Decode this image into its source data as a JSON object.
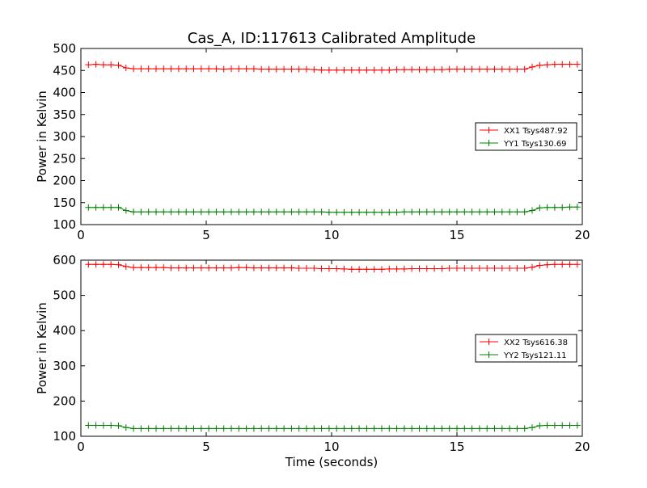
{
  "figure": {
    "title": "Cas_A, ID:117613 Calibrated Amplitude"
  },
  "chart_data": [
    {
      "type": "line",
      "title": "Cas_A, ID:117613 Calibrated Amplitude",
      "xlabel": "",
      "ylabel": "Power in Kelvin",
      "xlim": [
        0,
        20
      ],
      "ylim": [
        100,
        500
      ],
      "xticks": [
        "0",
        "5",
        "10",
        "15",
        "20"
      ],
      "yticks": [
        "100",
        "150",
        "200",
        "250",
        "300",
        "350",
        "400",
        "450",
        "500"
      ],
      "grid": false,
      "legend": "center-right",
      "series": [
        {
          "name": "XX1 Tsys487.92",
          "color": "#ff0000",
          "x": [
            0.3,
            0.6,
            0.9,
            1.2,
            1.5,
            1.8,
            2.1,
            2.4,
            2.7,
            3.0,
            3.3,
            3.6,
            3.9,
            4.2,
            4.5,
            4.8,
            5.1,
            5.4,
            5.7,
            6.0,
            6.3,
            6.6,
            6.9,
            7.2,
            7.5,
            7.8,
            8.1,
            8.4,
            8.7,
            9.0,
            9.3,
            9.6,
            9.9,
            10.2,
            10.5,
            10.8,
            11.1,
            11.4,
            11.7,
            12.0,
            12.3,
            12.6,
            12.9,
            13.2,
            13.5,
            13.8,
            14.1,
            14.4,
            14.7,
            15.0,
            15.3,
            15.6,
            15.9,
            16.2,
            16.5,
            16.8,
            17.1,
            17.4,
            17.7,
            18.0,
            18.3,
            18.6,
            18.9,
            19.2,
            19.5,
            19.8
          ],
          "y": [
            463,
            464,
            463,
            463,
            462,
            456,
            454,
            454,
            454,
            454,
            454,
            454,
            454,
            454,
            454,
            454,
            454,
            454,
            453,
            454,
            454,
            454,
            454,
            453,
            453,
            453,
            453,
            453,
            453,
            453,
            452,
            451,
            451,
            451,
            451,
            451,
            451,
            451,
            451,
            451,
            451,
            452,
            452,
            452,
            452,
            452,
            452,
            452,
            453,
            453,
            453,
            453,
            453,
            453,
            453,
            453,
            453,
            453,
            453,
            458,
            462,
            463,
            464,
            464,
            464,
            464
          ]
        },
        {
          "name": "YY1 Tsys130.69",
          "color": "#008000",
          "x": [
            0.3,
            0.6,
            0.9,
            1.2,
            1.5,
            1.8,
            2.1,
            2.4,
            2.7,
            3.0,
            3.3,
            3.6,
            3.9,
            4.2,
            4.5,
            4.8,
            5.1,
            5.4,
            5.7,
            6.0,
            6.3,
            6.6,
            6.9,
            7.2,
            7.5,
            7.8,
            8.1,
            8.4,
            8.7,
            9.0,
            9.3,
            9.6,
            9.9,
            10.2,
            10.5,
            10.8,
            11.1,
            11.4,
            11.7,
            12.0,
            12.3,
            12.6,
            12.9,
            13.2,
            13.5,
            13.8,
            14.1,
            14.4,
            14.7,
            15.0,
            15.3,
            15.6,
            15.9,
            16.2,
            16.5,
            16.8,
            17.1,
            17.4,
            17.7,
            18.0,
            18.3,
            18.6,
            18.9,
            19.2,
            19.5,
            19.8
          ],
          "y": [
            139,
            139,
            139,
            139,
            139,
            132,
            129,
            129,
            129,
            129,
            129,
            129,
            129,
            129,
            129,
            129,
            129,
            129,
            129,
            129,
            129,
            129,
            129,
            129,
            129,
            129,
            129,
            129,
            129,
            129,
            129,
            129,
            128,
            128,
            128,
            128,
            128,
            128,
            128,
            128,
            128,
            128,
            129,
            129,
            129,
            129,
            129,
            129,
            129,
            129,
            129,
            129,
            129,
            129,
            129,
            129,
            129,
            129,
            129,
            132,
            138,
            139,
            139,
            139,
            140,
            140
          ]
        }
      ]
    },
    {
      "type": "line",
      "title": "",
      "xlabel": "Time (seconds)",
      "ylabel": "Power in Kelvin",
      "xlim": [
        0,
        20
      ],
      "ylim": [
        100,
        600
      ],
      "xticks": [
        "0",
        "5",
        "10",
        "15",
        "20"
      ],
      "yticks": [
        "100",
        "200",
        "300",
        "400",
        "500",
        "600"
      ],
      "grid": false,
      "legend": "center-right",
      "series": [
        {
          "name": "XX2 Tsys616.38",
          "color": "#ff0000",
          "x": [
            0.3,
            0.6,
            0.9,
            1.2,
            1.5,
            1.8,
            2.1,
            2.4,
            2.7,
            3.0,
            3.3,
            3.6,
            3.9,
            4.2,
            4.5,
            4.8,
            5.1,
            5.4,
            5.7,
            6.0,
            6.3,
            6.6,
            6.9,
            7.2,
            7.5,
            7.8,
            8.1,
            8.4,
            8.7,
            9.0,
            9.3,
            9.6,
            9.9,
            10.2,
            10.5,
            10.8,
            11.1,
            11.4,
            11.7,
            12.0,
            12.3,
            12.6,
            12.9,
            13.2,
            13.5,
            13.8,
            14.1,
            14.4,
            14.7,
            15.0,
            15.3,
            15.6,
            15.9,
            16.2,
            16.5,
            16.8,
            17.1,
            17.4,
            17.7,
            18.0,
            18.3,
            18.6,
            18.9,
            19.2,
            19.5,
            19.8
          ],
          "y": [
            588,
            588,
            588,
            588,
            587,
            582,
            579,
            579,
            579,
            579,
            579,
            578,
            578,
            578,
            578,
            578,
            578,
            578,
            578,
            578,
            579,
            579,
            578,
            578,
            578,
            578,
            578,
            578,
            577,
            577,
            577,
            576,
            576,
            576,
            575,
            574,
            574,
            574,
            574,
            574,
            575,
            575,
            575,
            576,
            576,
            576,
            576,
            576,
            577,
            577,
            577,
            577,
            577,
            577,
            577,
            577,
            577,
            577,
            577,
            580,
            585,
            587,
            588,
            588,
            588,
            588
          ]
        },
        {
          "name": "YY2 Tsys121.11",
          "color": "#008000",
          "x": [
            0.3,
            0.6,
            0.9,
            1.2,
            1.5,
            1.8,
            2.1,
            2.4,
            2.7,
            3.0,
            3.3,
            3.6,
            3.9,
            4.2,
            4.5,
            4.8,
            5.1,
            5.4,
            5.7,
            6.0,
            6.3,
            6.6,
            6.9,
            7.2,
            7.5,
            7.8,
            8.1,
            8.4,
            8.7,
            9.0,
            9.3,
            9.6,
            9.9,
            10.2,
            10.5,
            10.8,
            11.1,
            11.4,
            11.7,
            12.0,
            12.3,
            12.6,
            12.9,
            13.2,
            13.5,
            13.8,
            14.1,
            14.4,
            14.7,
            15.0,
            15.3,
            15.6,
            15.9,
            16.2,
            16.5,
            16.8,
            17.1,
            17.4,
            17.7,
            18.0,
            18.3,
            18.6,
            18.9,
            19.2,
            19.5,
            19.8
          ],
          "y": [
            131,
            131,
            131,
            131,
            130,
            125,
            122,
            122,
            122,
            122,
            122,
            122,
            122,
            122,
            122,
            122,
            122,
            122,
            122,
            122,
            122,
            122,
            122,
            122,
            122,
            122,
            122,
            122,
            122,
            122,
            122,
            122,
            122,
            122,
            122,
            122,
            122,
            122,
            122,
            122,
            122,
            122,
            122,
            122,
            122,
            122,
            122,
            122,
            122,
            122,
            122,
            122,
            122,
            122,
            122,
            122,
            122,
            122,
            122,
            125,
            130,
            131,
            131,
            131,
            131,
            131
          ]
        }
      ]
    }
  ]
}
